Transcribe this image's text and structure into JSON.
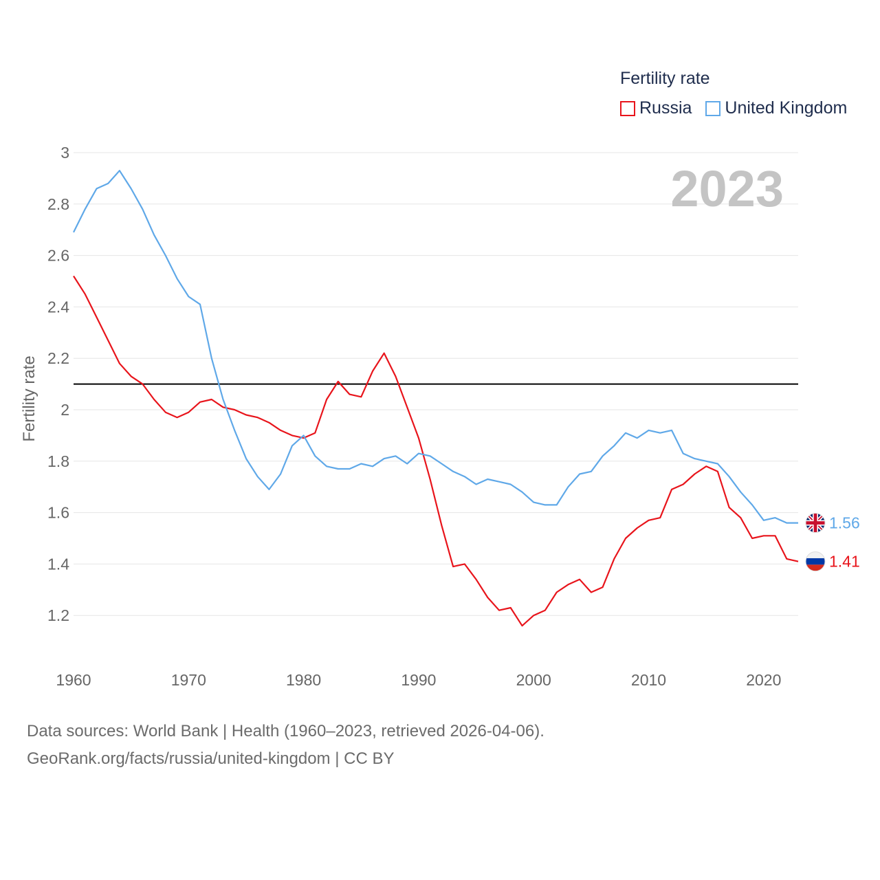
{
  "legend": {
    "title": "Fertility rate",
    "items": [
      {
        "label": "Russia",
        "color": "#e8141b"
      },
      {
        "label": "United Kingdom",
        "color": "#5fa8e8"
      }
    ]
  },
  "footer": {
    "line1": "Data sources: World Bank | Health (1960–2023, retrieved 2026-04-06).",
    "line2": "GeoRank.org/facts/russia/united-kingdom | CC BY"
  },
  "chart_data": {
    "type": "line",
    "title": "Fertility rate",
    "year_label": "2023",
    "xlabel": "",
    "ylabel": "Fertility rate",
    "xlim": [
      1960,
      2023
    ],
    "ylim": [
      1.0,
      3.0
    ],
    "x_ticks": [
      "1960",
      "1970",
      "1980",
      "1990",
      "2000",
      "2010",
      "2020"
    ],
    "y_ticks": [
      "3",
      "2.8",
      "2.6",
      "2.4",
      "2.2",
      "2",
      "1.8",
      "1.6",
      "1.4",
      "1.2"
    ],
    "reference_line": 2.1,
    "x": [
      1960,
      1961,
      1962,
      1963,
      1964,
      1965,
      1966,
      1967,
      1968,
      1969,
      1970,
      1971,
      1972,
      1973,
      1974,
      1975,
      1976,
      1977,
      1978,
      1979,
      1980,
      1981,
      1982,
      1983,
      1984,
      1985,
      1986,
      1987,
      1988,
      1989,
      1990,
      1991,
      1992,
      1993,
      1994,
      1995,
      1996,
      1997,
      1998,
      1999,
      2000,
      2001,
      2002,
      2003,
      2004,
      2005,
      2006,
      2007,
      2008,
      2009,
      2010,
      2011,
      2012,
      2013,
      2014,
      2015,
      2016,
      2017,
      2018,
      2019,
      2020,
      2021,
      2022,
      2023
    ],
    "series": [
      {
        "name": "Russia",
        "color": "#e8141b",
        "end_label": "1.41",
        "flag": "russia-flag",
        "values": [
          2.52,
          2.45,
          2.36,
          2.27,
          2.18,
          2.13,
          2.1,
          2.04,
          1.99,
          1.97,
          1.99,
          2.03,
          2.04,
          2.01,
          2.0,
          1.98,
          1.97,
          1.95,
          1.92,
          1.9,
          1.89,
          1.91,
          2.04,
          2.11,
          2.06,
          2.05,
          2.15,
          2.22,
          2.13,
          2.01,
          1.89,
          1.73,
          1.55,
          1.39,
          1.4,
          1.34,
          1.27,
          1.22,
          1.23,
          1.16,
          1.2,
          1.22,
          1.29,
          1.32,
          1.34,
          1.29,
          1.31,
          1.42,
          1.5,
          1.54,
          1.57,
          1.58,
          1.69,
          1.71,
          1.75,
          1.78,
          1.76,
          1.62,
          1.58,
          1.5,
          1.51,
          1.51,
          1.42,
          1.41
        ]
      },
      {
        "name": "United Kingdom",
        "color": "#5fa8e8",
        "end_label": "1.56",
        "flag": "uk-flag",
        "values": [
          2.69,
          2.78,
          2.86,
          2.88,
          2.93,
          2.86,
          2.78,
          2.68,
          2.6,
          2.51,
          2.44,
          2.41,
          2.2,
          2.04,
          1.92,
          1.81,
          1.74,
          1.69,
          1.75,
          1.86,
          1.9,
          1.82,
          1.78,
          1.77,
          1.77,
          1.79,
          1.78,
          1.81,
          1.82,
          1.79,
          1.83,
          1.82,
          1.79,
          1.76,
          1.74,
          1.71,
          1.73,
          1.72,
          1.71,
          1.68,
          1.64,
          1.63,
          1.63,
          1.7,
          1.75,
          1.76,
          1.82,
          1.86,
          1.91,
          1.89,
          1.92,
          1.91,
          1.92,
          1.83,
          1.81,
          1.8,
          1.79,
          1.74,
          1.68,
          1.63,
          1.57,
          1.58,
          1.56,
          1.56
        ]
      }
    ]
  }
}
